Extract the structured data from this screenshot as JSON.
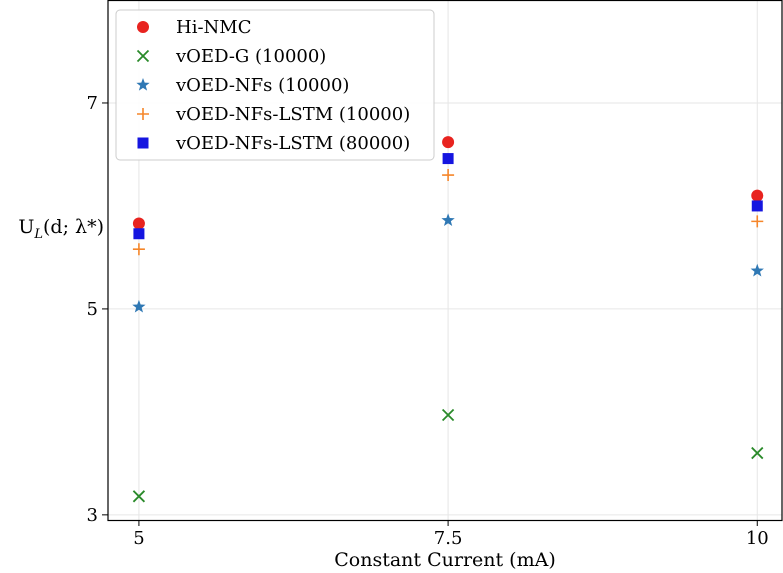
{
  "chart_data": {
    "type": "scatter",
    "title": "",
    "xlabel": "Constant Current (mA)",
    "ylabel": "U",
    "ylabel_sub": "L",
    "ylabel_tail": "(d; λ*)",
    "x_ticks": [
      5,
      7.5,
      10
    ],
    "x_tick_labels": [
      "5",
      "7.5",
      "10"
    ],
    "y_ticks": [
      3,
      5,
      7
    ],
    "y_tick_labels": [
      "3",
      "5",
      "7"
    ],
    "xlim": [
      4.75,
      10.2
    ],
    "ylim": [
      2.95,
      8.0
    ],
    "grid": true,
    "legend_position": "top-left",
    "series": [
      {
        "name": "Hi-NMC",
        "marker": "circle",
        "color": "#e8231f",
        "points": [
          [
            5,
            5.83
          ],
          [
            7.5,
            6.62
          ],
          [
            10,
            6.1
          ]
        ]
      },
      {
        "name": "vOED-G (10000)",
        "marker": "x",
        "color": "#2a8a2a",
        "points": [
          [
            5,
            3.18
          ],
          [
            7.5,
            3.97
          ],
          [
            10,
            3.6
          ]
        ]
      },
      {
        "name": "vOED-NFs (10000)",
        "marker": "star",
        "color": "#2f78b4",
        "points": [
          [
            5,
            5.02
          ],
          [
            7.5,
            5.86
          ],
          [
            10,
            5.37
          ]
        ]
      },
      {
        "name": "vOED-NFs-LSTM (10000)",
        "marker": "plus",
        "color": "#f5862a",
        "points": [
          [
            5,
            5.58
          ],
          [
            7.5,
            6.3
          ],
          [
            10,
            5.85
          ]
        ]
      },
      {
        "name": "vOED-NFs-LSTM (80000)",
        "marker": "square",
        "color": "#1515e0",
        "points": [
          [
            5,
            5.73
          ],
          [
            7.5,
            6.46
          ],
          [
            10,
            6.0
          ]
        ]
      }
    ]
  }
}
